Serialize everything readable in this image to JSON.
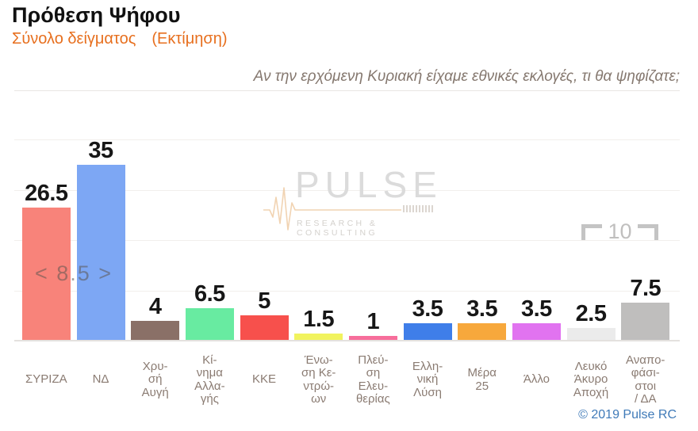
{
  "header": {
    "title": "Πρόθεση Ψήφου",
    "subtitle_sample": "Σύνολο δείγματος",
    "subtitle_estimate": "(Εκτίμηση)",
    "question": "Αν την ερχόμενη Κυριακή είχαμε εθνικές εκλογές, τι θα ψηφίζατε;"
  },
  "watermark": {
    "name": "PULSE",
    "tagline": "RESEARCH & CONSULTING"
  },
  "scale_marker": {
    "label": "10"
  },
  "difference_label": "< 8.5 >",
  "footer": {
    "copyright": "© 2019 Pulse RC"
  },
  "chart_data": {
    "type": "bar",
    "title": "Πρόθεση Ψήφου",
    "subtitle": "Σύνολο δείγματος (Εκτίμηση)",
    "question": "Αν την ερχόμενη Κυριακή είχαμε εθνικές εκλογές, τι θα ψηφίζατε;",
    "categories": [
      "ΣΥΡΙΖΑ",
      "ΝΔ",
      "Χρυσή Αυγή",
      "Κίνημα Αλλαγής",
      "ΚΚΕ",
      "Ένωση Κεντρώων",
      "Πλεύση Ελευθερίας",
      "Ελληνική Λύση",
      "Μέρα 25",
      "Άλλο",
      "Λευκό Άκυρο Αποχή",
      "Αναποφάσιστοι / ΔΑ"
    ],
    "values": [
      26.5,
      35,
      4,
      6.5,
      5,
      1.5,
      1,
      3.5,
      3.5,
      3.5,
      2.5,
      7.5
    ],
    "display_values": [
      "26.5",
      "35",
      "4",
      "6.5",
      "5",
      "1.5",
      "1",
      "3.5",
      "3.5",
      "3.5",
      "2.5",
      "7.5"
    ],
    "label_lines": [
      [
        "ΣΥΡΙΖΑ"
      ],
      [
        "ΝΔ"
      ],
      [
        "Χρυ-",
        "σή",
        "Αυγή"
      ],
      [
        "Κί-",
        "νημα",
        "Αλλα-",
        "γής"
      ],
      [
        "ΚΚΕ"
      ],
      [
        "Ένω-",
        "ση Κε-",
        "ντρώ-",
        "ων"
      ],
      [
        "Πλεύ-",
        "ση",
        "Ελευ-",
        "θερίας"
      ],
      [
        "Ελλη-",
        "νική",
        "Λύση"
      ],
      [
        "Μέρα",
        "25"
      ],
      [
        "Άλλο"
      ],
      [
        "Λευκό",
        "Άκυρο",
        "Αποχή"
      ],
      [
        "Αναπο-",
        "φάσι-",
        "στοι",
        "/ ΔΑ"
      ]
    ],
    "bar_colors": [
      "#f8837a",
      "#7da7f4",
      "#8a7067",
      "#68eba1",
      "#f7504c",
      "#f1f35e",
      "#f76e9b",
      "#3f7ee9",
      "#f7a83c",
      "#e173f0",
      "#ebebeb",
      "#bfbebd"
    ],
    "ylim": [
      0,
      40
    ],
    "gridline_step": 10,
    "grid": true,
    "legend": "none",
    "annotations": [
      {
        "text": "< 8.5 >",
        "meaning": "difference between first two bars (ΝΔ - ΣΥΡΙΖΑ)"
      },
      {
        "text": "10",
        "meaning": "scale bracket showing 10 percentage points"
      }
    ]
  },
  "colors": {
    "subtitle_orange": "#e76f1e",
    "question_gray": "#85786f",
    "copyright_blue": "#3f7ab8",
    "watermark_gray": "#dbdbdb",
    "heartbeat_orange": "#efcba4"
  }
}
